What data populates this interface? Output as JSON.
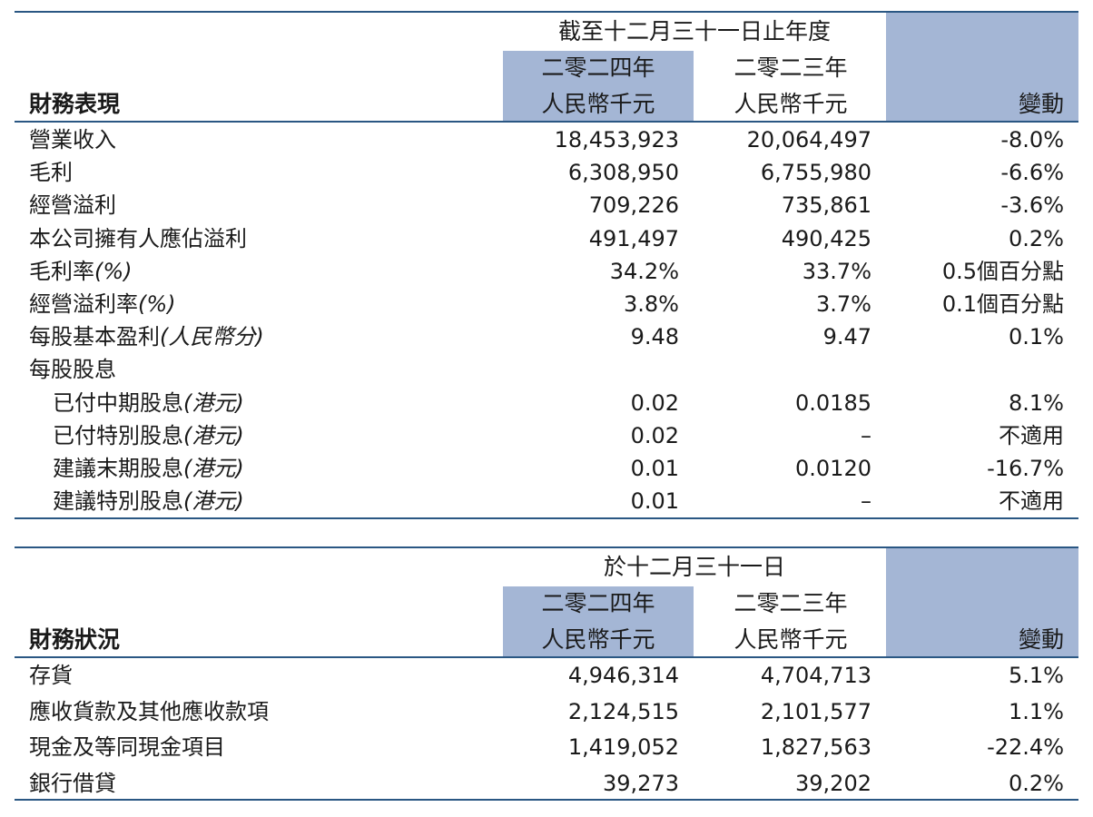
{
  "performance": {
    "title": "財務表現",
    "period_header": "截至十二月三十一日止年度",
    "col_2024_year": "二零二四年",
    "col_2024_unit": "人民幣千元",
    "col_2023_year": "二零二三年",
    "col_2023_unit": "人民幣千元",
    "col_change": "變動",
    "rows": [
      {
        "label": "營業收入",
        "suffix": "",
        "v2024": "18,453,923",
        "v2023": "20,064,497",
        "change": "-8.0%"
      },
      {
        "label": "毛利",
        "suffix": "",
        "v2024": "6,308,950",
        "v2023": "6,755,980",
        "change": "-6.6%"
      },
      {
        "label": "經營溢利",
        "suffix": "",
        "v2024": "709,226",
        "v2023": "735,861",
        "change": "-3.6%"
      },
      {
        "label": "本公司擁有人應佔溢利",
        "suffix": "",
        "v2024": "491,497",
        "v2023": "490,425",
        "change": "0.2%"
      },
      {
        "label": "毛利率",
        "suffix": "(%)",
        "v2024": "34.2%",
        "v2023": "33.7%",
        "change": "0.5個百分點"
      },
      {
        "label": "經營溢利率",
        "suffix": "(%)",
        "v2024": "3.8%",
        "v2023": "3.7%",
        "change": "0.1個百分點"
      },
      {
        "label": "每股基本盈利",
        "suffix": "(人民幣分)",
        "v2024": "9.48",
        "v2023": "9.47",
        "change": "0.1%"
      },
      {
        "label": "每股股息",
        "suffix": "",
        "v2024": "",
        "v2023": "",
        "change": ""
      },
      {
        "label": "已付中期股息",
        "suffix": "(港元)",
        "v2024": "0.02",
        "v2023": "0.0185",
        "change": "8.1%"
      },
      {
        "label": "已付特別股息",
        "suffix": "(港元)",
        "v2024": "0.02",
        "v2023": "–",
        "change": "不適用"
      },
      {
        "label": "建議末期股息",
        "suffix": "(港元)",
        "v2024": "0.01",
        "v2023": "0.0120",
        "change": "-16.7%"
      },
      {
        "label": "建議特別股息",
        "suffix": "(港元)",
        "v2024": "0.01",
        "v2023": "–",
        "change": "不適用"
      }
    ]
  },
  "position": {
    "title": "財務狀況",
    "period_header": "於十二月三十一日",
    "col_2024_year": "二零二四年",
    "col_2024_unit": "人民幣千元",
    "col_2023_year": "二零二三年",
    "col_2023_unit": "人民幣千元",
    "col_change": "變動",
    "rows": [
      {
        "label": "存貨",
        "suffix": "",
        "v2024": "4,946,314",
        "v2023": "4,704,713",
        "change": "5.1%"
      },
      {
        "label": "應收貨款及其他應收款項",
        "suffix": "",
        "v2024": "2,124,515",
        "v2023": "2,101,577",
        "change": "1.1%"
      },
      {
        "label": "現金及等同現金項目",
        "suffix": "",
        "v2024": "1,419,052",
        "v2023": "1,827,563",
        "change": "-22.4%"
      },
      {
        "label": "銀行借貸",
        "suffix": "",
        "v2024": "39,273",
        "v2023": "39,202",
        "change": "0.2%"
      }
    ]
  }
}
